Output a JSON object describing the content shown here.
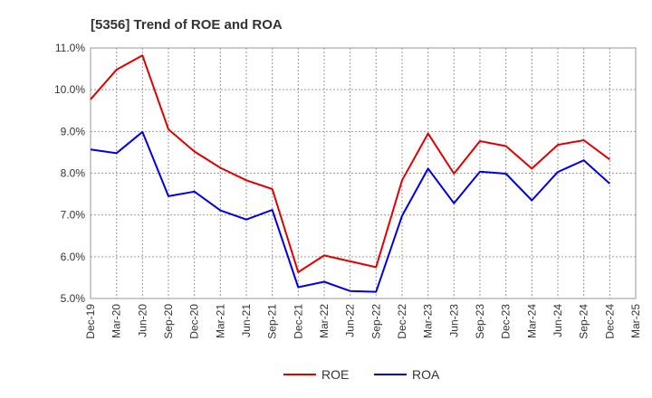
{
  "chart_data": {
    "type": "line",
    "title": "[5356]  Trend of ROE and ROA",
    "xlabel": "",
    "ylabel": "",
    "ylim": [
      5.0,
      11.0
    ],
    "yticks": [
      "5.0%",
      "6.0%",
      "7.0%",
      "8.0%",
      "9.0%",
      "10.0%",
      "11.0%"
    ],
    "ytick_values": [
      5.0,
      6.0,
      7.0,
      8.0,
      9.0,
      10.0,
      11.0
    ],
    "x_tick_labels": [
      "Dec-19",
      "Mar-20",
      "Jun-20",
      "Sep-20",
      "Dec-20",
      "Mar-21",
      "Jun-21",
      "Sep-21",
      "Dec-21",
      "Mar-22",
      "Jun-22",
      "Sep-22",
      "Dec-22",
      "Mar-23",
      "Jun-23",
      "Sep-23",
      "Dec-23",
      "Mar-24",
      "Jun-24",
      "Sep-24",
      "Dec-24",
      "Mar-25"
    ],
    "categories": [
      "Dec-19",
      "Mar-20",
      "Jun-20",
      "Sep-20",
      "Dec-20",
      "Mar-21",
      "Jun-21",
      "Sep-21",
      "Dec-21",
      "Mar-22",
      "Jun-22",
      "Sep-22",
      "Dec-22",
      "Mar-23",
      "Jun-23",
      "Sep-23",
      "Dec-23",
      "Mar-24",
      "Jun-24",
      "Sep-24",
      "Dec-24"
    ],
    "grid": true,
    "legend_position": "bottom-center",
    "series": [
      {
        "name": "ROE",
        "color": "#e00000",
        "values": [
          9.77,
          10.48,
          10.82,
          9.05,
          8.52,
          8.13,
          7.83,
          7.62,
          5.63,
          6.03,
          5.89,
          5.75,
          7.83,
          8.95,
          7.99,
          8.77,
          8.65,
          8.11,
          8.68,
          8.79,
          8.33
        ]
      },
      {
        "name": "ROA",
        "color": "#0000e0",
        "values": [
          8.57,
          8.48,
          8.99,
          7.45,
          7.56,
          7.11,
          6.89,
          7.12,
          5.27,
          5.4,
          5.18,
          5.16,
          6.98,
          8.11,
          7.28,
          8.04,
          7.99,
          7.35,
          8.03,
          8.31,
          7.75
        ]
      }
    ]
  }
}
